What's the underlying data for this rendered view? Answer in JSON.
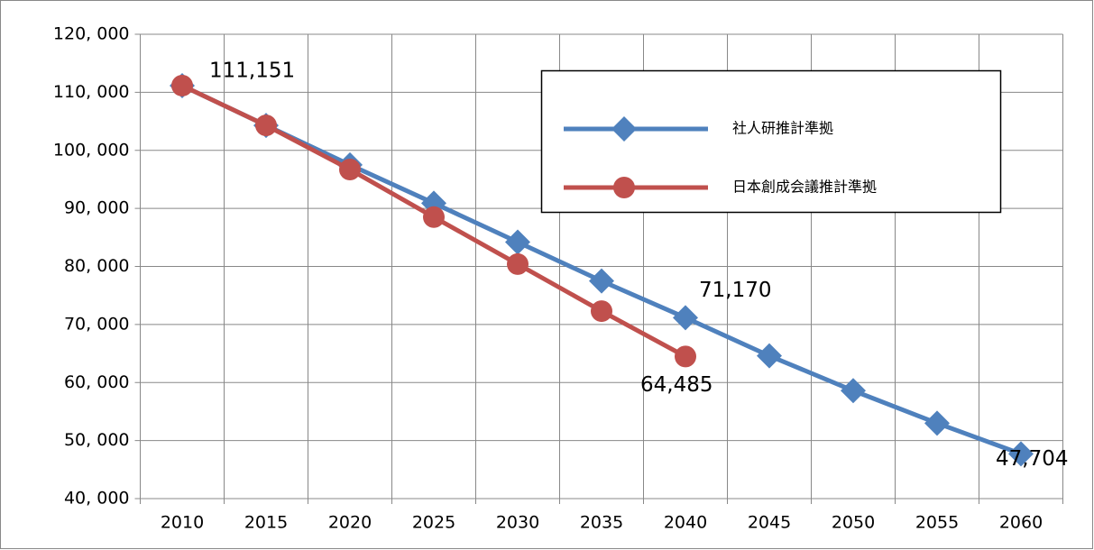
{
  "chart_data": {
    "type": "line",
    "categories": [
      "2010",
      "2015",
      "2020",
      "2025",
      "2030",
      "2035",
      "2040",
      "2045",
      "2050",
      "2055",
      "2060"
    ],
    "series": [
      {
        "name": "社人研推計準拠",
        "color": "#4f81bd",
        "marker": "diamond",
        "values": [
          111151,
          104300,
          97500,
          90900,
          84200,
          77500,
          71170,
          64600,
          58600,
          53000,
          47704
        ],
        "value_labels": [
          null,
          null,
          null,
          null,
          null,
          null,
          "71,170",
          null,
          null,
          null,
          "47,704"
        ]
      },
      {
        "name": "日本創成会議推計準拠",
        "color": "#c0504d",
        "marker": "circle",
        "values": [
          111151,
          104300,
          96700,
          88500,
          80400,
          72300,
          64485,
          null,
          null,
          null,
          null
        ],
        "value_labels": [
          "111,151",
          null,
          null,
          null,
          null,
          null,
          "64,485",
          null,
          null,
          null,
          null
        ]
      }
    ],
    "ylim": [
      40000,
      120000
    ],
    "yticks": [
      {
        "value": 40000,
        "label": "40, 000"
      },
      {
        "value": 50000,
        "label": "50, 000"
      },
      {
        "value": 60000,
        "label": "60, 000"
      },
      {
        "value": 70000,
        "label": "70, 000"
      },
      {
        "value": 80000,
        "label": "80, 000"
      },
      {
        "value": 90000,
        "label": "90, 000"
      },
      {
        "value": 100000,
        "label": "100, 000"
      },
      {
        "value": 110000,
        "label": "110, 000"
      },
      {
        "value": 120000,
        "label": "120, 000"
      }
    ],
    "grid": true,
    "legend": "upper right"
  }
}
